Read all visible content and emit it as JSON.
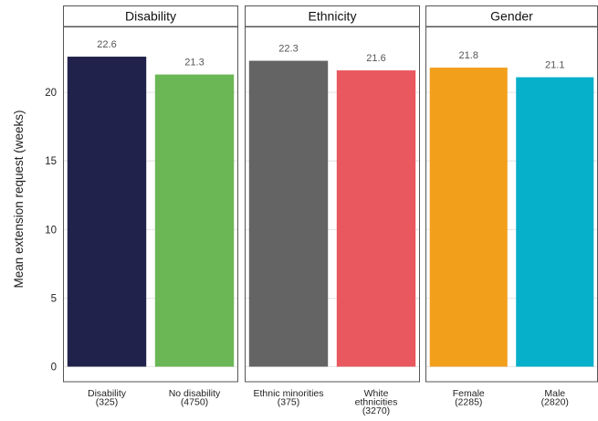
{
  "chart_data": {
    "type": "bar",
    "ylabel": "Mean extension request (weeks)",
    "ylim": [
      -1.1,
      24.8
    ],
    "yticks": [
      0,
      5,
      10,
      15,
      20
    ],
    "grid": true,
    "legend": "none",
    "panels": [
      {
        "title": "Disability",
        "bars": [
          {
            "label": "Disability",
            "sublabel": "(325)",
            "value": 22.6,
            "value_label": "22.6",
            "color": "#21224b"
          },
          {
            "label": "No disability",
            "sublabel": "(4750)",
            "value": 21.3,
            "value_label": "21.3",
            "color": "#6bb755"
          }
        ]
      },
      {
        "title": "Ethnicity",
        "bars": [
          {
            "label": "Ethnic minorities",
            "sublabel": "(375)",
            "value": 22.3,
            "value_label": "22.3",
            "color": "#646464"
          },
          {
            "label": "White ethnicities",
            "label_lines": [
              "White",
              "ethnicities"
            ],
            "sublabel": "(3270)",
            "value": 21.6,
            "value_label": "21.6",
            "color": "#e9585e"
          }
        ]
      },
      {
        "title": "Gender",
        "bars": [
          {
            "label": "Female",
            "sublabel": "(2285)",
            "value": 21.8,
            "value_label": "21.8",
            "color": "#f29f1b"
          },
          {
            "label": "Male",
            "sublabel": "(2820)",
            "value": 21.1,
            "value_label": "21.1",
            "color": "#06afca"
          }
        ]
      }
    ]
  }
}
